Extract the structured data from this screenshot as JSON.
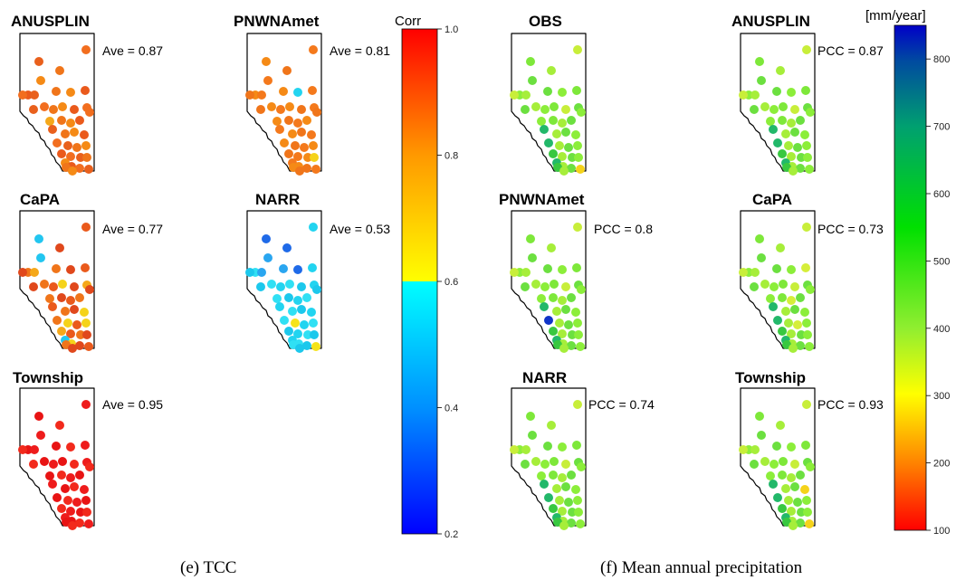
{
  "chart_data": [
    {
      "type": "scatter",
      "panel_group": "(e) TCC",
      "colorbar": {
        "title": "Corr",
        "range": [
          0.2,
          1.0
        ],
        "ticks": [
          "0.2",
          "0.4",
          "0.6",
          "0.8",
          "1.0"
        ],
        "colors": [
          "#0000ff",
          "#00a0ff",
          "#00ffff",
          "#ffff00",
          "#ff9900",
          "#ff0000"
        ]
      },
      "panels": [
        {
          "title": "ANUSPLIN",
          "stat": "Ave = 0.87",
          "value": 0.87,
          "dominant_color": "#f26e1f"
        },
        {
          "title": "PNWNAmet",
          "stat": "Ave = 0.81",
          "value": 0.81,
          "dominant_color": "#f4791c"
        },
        {
          "title": "CaPA",
          "stat": "Ave = 0.77",
          "value": 0.77,
          "dominant_color": "#ea5a1c"
        },
        {
          "title": "NARR",
          "stat": "Ave = 0.53",
          "value": 0.53,
          "dominant_color": "#22d4f0"
        },
        {
          "title": "Township",
          "stat": "Ave = 0.95",
          "value": 0.95,
          "dominant_color": "#ee1c1c"
        }
      ]
    },
    {
      "type": "scatter",
      "panel_group": "(f) Mean annual precipitation",
      "colorbar": {
        "title": "[mm/year]",
        "range": [
          100,
          850
        ],
        "ticks": [
          "100",
          "200",
          "300",
          "400",
          "500",
          "600",
          "700",
          "800"
        ],
        "colors": [
          "#ff0000",
          "#ff9900",
          "#ffff00",
          "#7fff00",
          "#00e000",
          "#00a060",
          "#004fa0",
          "#0000c8"
        ]
      },
      "panels": [
        {
          "title": "OBS",
          "stat": "",
          "value": null,
          "dominant_color": "#8cee3a"
        },
        {
          "title": "ANUSPLIN",
          "stat": "PCC = 0.87",
          "value": 0.87,
          "dominant_color": "#90ee3a"
        },
        {
          "title": "PNWNAmet",
          "stat": "PCC = 0.8",
          "value": 0.8,
          "dominant_color": "#7ee83a"
        },
        {
          "title": "CaPA",
          "stat": "PCC = 0.73",
          "value": 0.73,
          "dominant_color": "#a6ee3a"
        },
        {
          "title": "NARR",
          "stat": "PCC = 0.74",
          "value": 0.74,
          "dominant_color": "#7ee83a"
        },
        {
          "title": "Township",
          "stat": "PCC = 0.93",
          "value": 0.93,
          "dominant_color": "#94ee3a"
        }
      ]
    }
  ],
  "captions": {
    "left": "(e) TCC",
    "right": "(f) Mean annual precipitation"
  }
}
